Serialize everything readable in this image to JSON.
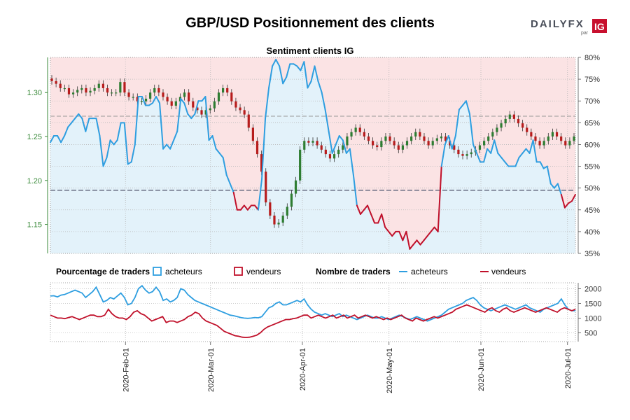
{
  "header": {
    "title": "GBP/USD Positionnement des clients",
    "logo_word": "DAILYFX",
    "logo_par": "par",
    "logo_ig": "IG"
  },
  "colors": {
    "buyers": "#2e9ee0",
    "sellers": "#c0102a",
    "buyers_fill": "#e3f2fa",
    "sellers_fill": "#fbe3e4",
    "candle_up": "#2e7d32",
    "candle_down": "#b71c1c",
    "axis_green": "#3a8a3a"
  },
  "chart_data": [
    {
      "type": "line",
      "title": "Sentiment clients IG",
      "ylabel_left": "",
      "ylabel_right": "",
      "left_axis": {
        "ticks": [
          "1.15",
          "1.20",
          "1.25",
          "1.30"
        ],
        "ylim": [
          1.117,
          1.34
        ]
      },
      "right_axis": {
        "ticks": [
          "35%",
          "40%",
          "45%",
          "50%",
          "55%",
          "60%",
          "65%",
          "70%",
          "75%",
          "80%"
        ],
        "ylim": [
          35,
          80
        ]
      },
      "x_ticks": [
        "2020-Feb-01",
        "2020-Mar-01",
        "2020-Apr-01",
        "2020-May-01",
        "2020-Jun-01",
        "2020-Jul-01"
      ],
      "reference_line_pct": 49.5,
      "series": [
        {
          "name": "acheteurs",
          "values": [
            60.5,
            62,
            62,
            60.5,
            62,
            64,
            65,
            66,
            67,
            66,
            63,
            66,
            66,
            66,
            62,
            55,
            57,
            61,
            60,
            61,
            65,
            65,
            55.5,
            56,
            60,
            71,
            71,
            69,
            69,
            69.5,
            71,
            69.5,
            59,
            60,
            59,
            61,
            63,
            70.5,
            69.5,
            67,
            66,
            67,
            70,
            70,
            71,
            61,
            62,
            59,
            58,
            57,
            53,
            51,
            49,
            45,
            45,
            46,
            45,
            46,
            46,
            45,
            52,
            66,
            73,
            78,
            79.5,
            78,
            74,
            75.5,
            78.5,
            78.5,
            78,
            77,
            79,
            73,
            74.5,
            78,
            74.5,
            72,
            68,
            63,
            58,
            60,
            62,
            61,
            58,
            59,
            53,
            46,
            44,
            45,
            46,
            44,
            42,
            42,
            44,
            41,
            40,
            39,
            40,
            40,
            38,
            40,
            36,
            37,
            38,
            37,
            38,
            39,
            40,
            41,
            40,
            55,
            60,
            62,
            59,
            62,
            68,
            69,
            70,
            67,
            60,
            58,
            56,
            56,
            59,
            58,
            61,
            58,
            57,
            56,
            55,
            55,
            55,
            57,
            58,
            59,
            58,
            61,
            56,
            56,
            54.5,
            55,
            51,
            50,
            51,
            48.5,
            45.5,
            46.5,
            47,
            48.5
          ],
          "label_values": [
            60.5,
            62,
            62,
            60.5,
            62,
            64,
            65,
            66,
            67,
            66,
            63,
            66,
            66,
            66,
            62,
            55,
            57,
            61,
            60,
            61,
            65,
            65,
            55.5,
            56,
            60,
            71,
            71,
            69,
            69,
            69.5,
            71,
            69.5,
            59,
            60,
            59,
            61,
            63,
            70.5,
            69.5,
            67,
            66,
            67,
            70,
            70,
            71,
            61,
            62,
            59,
            58,
            57,
            53,
            51,
            49,
            45,
            45,
            46,
            45,
            46,
            46,
            45,
            52,
            66,
            73,
            78,
            79.5,
            78,
            74,
            75.5,
            78.5,
            78.5,
            78,
            77,
            79,
            73,
            74.5,
            78,
            74.5,
            72,
            68,
            63,
            58,
            60,
            62,
            61,
            58,
            59,
            53,
            46,
            44,
            45,
            46,
            44,
            42,
            42,
            44,
            41,
            40,
            39,
            40,
            40,
            38,
            40,
            36,
            37,
            38,
            37,
            38,
            39,
            40,
            41,
            40,
            55,
            60,
            62,
            59,
            62,
            68,
            69,
            70,
            67,
            60,
            58,
            56,
            56,
            59,
            58,
            61,
            58,
            57,
            56,
            55,
            55,
            55,
            57,
            58,
            59,
            58,
            61,
            56,
            56,
            54.5,
            55,
            51,
            50,
            51,
            48.5,
            45.5,
            46.5,
            47,
            48.5
          ]
        }
      ],
      "price_approx": [
        1.313,
        1.31,
        1.305,
        1.305,
        1.298,
        1.3,
        1.303,
        1.305,
        1.3,
        1.302,
        1.305,
        1.31,
        1.305,
        1.3,
        1.3,
        1.3,
        1.312,
        1.3,
        1.295,
        1.295,
        1.29,
        1.29,
        1.293,
        1.3,
        1.305,
        1.3,
        1.295,
        1.29,
        1.285,
        1.29,
        1.295,
        1.3,
        1.29,
        1.283,
        1.28,
        1.275,
        1.28,
        1.282,
        1.29,
        1.3,
        1.305,
        1.3,
        1.29,
        1.283,
        1.28,
        1.275,
        1.26,
        1.245,
        1.23,
        1.21,
        1.175,
        1.16,
        1.15,
        1.152,
        1.16,
        1.17,
        1.185,
        1.2,
        1.235,
        1.245,
        1.243,
        1.245,
        1.24,
        1.235,
        1.23,
        1.225,
        1.23,
        1.235,
        1.24,
        1.25,
        1.255,
        1.26,
        1.255,
        1.25,
        1.245,
        1.24,
        1.238,
        1.245,
        1.25,
        1.245,
        1.24,
        1.235,
        1.24,
        1.245,
        1.25,
        1.255,
        1.25,
        1.245,
        1.24,
        1.245,
        1.248,
        1.25,
        1.245,
        1.24,
        1.235,
        1.23,
        1.228,
        1.23,
        1.232,
        1.235,
        1.24,
        1.245,
        1.25,
        1.255,
        1.26,
        1.265,
        1.27,
        1.275,
        1.27,
        1.265,
        1.26,
        1.255,
        1.25,
        1.245,
        1.24,
        1.245,
        1.25,
        1.255,
        1.25,
        1.245,
        1.24,
        1.245,
        1.25
      ]
    },
    {
      "type": "line",
      "title": "",
      "right_axis": {
        "ticks": [
          "500",
          "1000",
          "1500",
          "2000"
        ],
        "ylim": [
          200,
          2200
        ]
      },
      "legend_pct_title": "Pourcentage de traders",
      "legend_num_title": "Nombre de traders",
      "series": [
        {
          "name": "acheteurs",
          "values": [
            1750,
            1760,
            1720,
            1780,
            1800,
            1850,
            1900,
            1950,
            1900,
            1850,
            1700,
            1800,
            1900,
            2050,
            1800,
            1550,
            1600,
            1700,
            1650,
            1750,
            1850,
            1700,
            1450,
            1500,
            1700,
            2000,
            2100,
            1950,
            1850,
            1900,
            2050,
            1900,
            1600,
            1650,
            1550,
            1600,
            1700,
            2000,
            1950,
            1800,
            1700,
            1600,
            1550,
            1500,
            1450,
            1400,
            1350,
            1300,
            1250,
            1200,
            1150,
            1100,
            1080,
            1050,
            1020,
            1000,
            990,
            1000,
            1020,
            1010,
            1050,
            1200,
            1350,
            1400,
            1500,
            1550,
            1450,
            1450,
            1500,
            1550,
            1600,
            1550,
            1650,
            1450,
            1300,
            1200,
            1150,
            1100,
            1150,
            1100,
            1050,
            1100,
            1150,
            1050,
            1100,
            1050,
            1000,
            950,
            1000,
            1050,
            1100,
            1050,
            1000,
            1000,
            1050,
            1000,
            950,
            1000,
            1050,
            1100,
            1050,
            1000,
            950,
            1000,
            1050,
            1000,
            950,
            900,
            950,
            1000,
            1050,
            1100,
            1200,
            1300,
            1350,
            1400,
            1450,
            1500,
            1600,
            1650,
            1700,
            1600,
            1450,
            1350,
            1300,
            1250,
            1300,
            1350,
            1400,
            1450,
            1400,
            1350,
            1300,
            1350,
            1400,
            1450,
            1350,
            1300,
            1250,
            1200,
            1300,
            1350,
            1400,
            1450,
            1500,
            1650,
            1450,
            1300,
            1250,
            1250
          ]
        },
        {
          "name": "vendeurs",
          "values": [
            1100,
            1050,
            1000,
            1000,
            980,
            1020,
            1050,
            1000,
            950,
            1000,
            1050,
            1100,
            1100,
            1050,
            1050,
            1100,
            1300,
            1150,
            1050,
            1000,
            1000,
            950,
            1050,
            1200,
            1250,
            1150,
            1100,
            1000,
            900,
            950,
            1000,
            1050,
            850,
            900,
            900,
            850,
            900,
            950,
            1050,
            1100,
            1200,
            1150,
            1000,
            900,
            850,
            800,
            750,
            650,
            550,
            500,
            450,
            400,
            380,
            350,
            340,
            350,
            380,
            420,
            500,
            620,
            700,
            750,
            800,
            850,
            900,
            950,
            950,
            980,
            1000,
            1050,
            1100,
            1100,
            1000,
            1050,
            1100,
            1050,
            1000,
            1050,
            1100,
            1000,
            1050,
            1100,
            1000,
            1050,
            1100,
            1000,
            1050,
            1100,
            1050,
            1000,
            1050,
            1000,
            950,
            1000,
            950,
            1000,
            1050,
            1100,
            1000,
            950,
            900,
            1000,
            950,
            900,
            950,
            1000,
            1050,
            1000,
            1050,
            1100,
            1150,
            1200,
            1300,
            1350,
            1400,
            1450,
            1400,
            1350,
            1300,
            1250,
            1200,
            1300,
            1350,
            1250,
            1200,
            1300,
            1350,
            1250,
            1200,
            1250,
            1300,
            1350,
            1300,
            1250,
            1200,
            1250,
            1300,
            1350,
            1300,
            1250,
            1200,
            1300,
            1350,
            1300,
            1250,
            1300
          ]
        }
      ]
    }
  ],
  "legend": {
    "pct_title": "Pourcentage de traders",
    "pct_buyers": "acheteurs",
    "pct_sellers": "vendeurs",
    "num_title": "Nombre de traders",
    "num_buyers": "acheteurs",
    "num_sellers": "vendeurs"
  }
}
